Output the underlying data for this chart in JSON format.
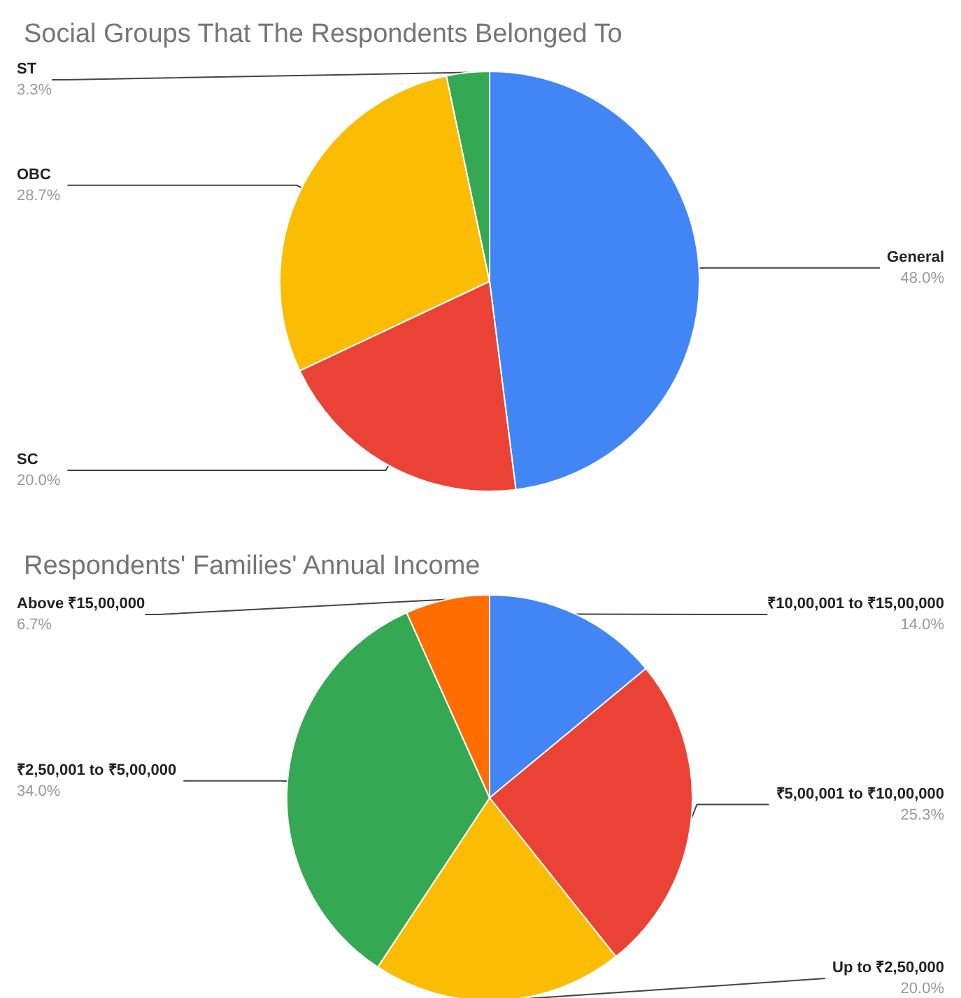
{
  "chart_data": [
    {
      "type": "pie",
      "title": "Social Groups That The Respondents Belonged To",
      "categories": [
        "General",
        "SC",
        "OBC",
        "ST"
      ],
      "values": [
        48.0,
        20.0,
        28.7,
        3.3
      ],
      "colors": [
        "#4285f4",
        "#ea4335",
        "#fbbc04",
        "#34a853"
      ],
      "value_labels": [
        "48.0%",
        "20.0%",
        "28.7%",
        "3.3%"
      ],
      "legend": false
    },
    {
      "type": "pie",
      "title": "Respondents' Families' Annual Income",
      "categories": [
        "₹10,00,001 to ₹15,00,000",
        "₹5,00,001 to ₹10,00,000",
        "Up to ₹2,50,000",
        "₹2,50,001 to ₹5,00,000",
        "Above ₹15,00,000"
      ],
      "values": [
        14.0,
        25.3,
        20.0,
        34.0,
        6.7
      ],
      "colors": [
        "#4285f4",
        "#ea4335",
        "#fbbc04",
        "#34a853",
        "#ff6d01"
      ],
      "value_labels": [
        "14.0%",
        "25.3%",
        "20.0%",
        "34.0%",
        "6.7%"
      ],
      "legend": false
    }
  ]
}
